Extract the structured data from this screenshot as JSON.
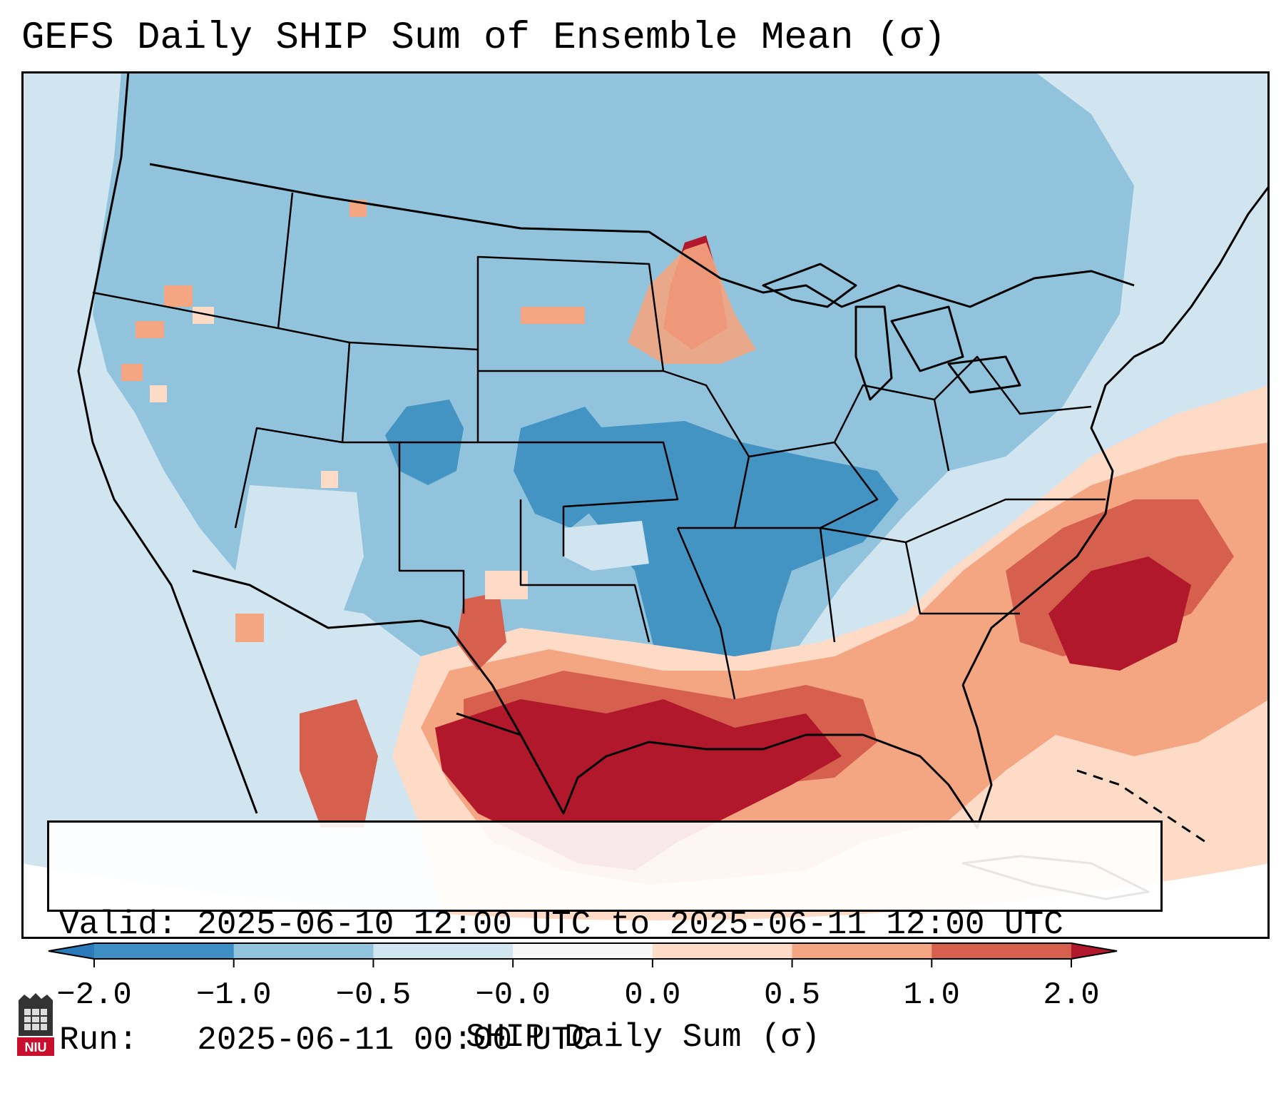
{
  "title": "GEFS Daily SHIP Sum of Ensemble Mean (σ)",
  "info": {
    "valid_label": "Valid:",
    "valid_value": "2025-06-10 12:00 UTC to 2025-06-11 12:00 UTC",
    "run_label": "Run:",
    "run_value": "2025-06-11 00:00 UTC"
  },
  "colorbar": {
    "label": "SHIP Daily Sum (σ)",
    "ticks": [
      "−2.0",
      "−1.0",
      "−0.5",
      "−0.0",
      "0.0",
      "0.5",
      "1.0",
      "2.0"
    ],
    "colors": [
      "#2b7bba",
      "#3d8fc6",
      "#92c3dd",
      "#d1e5f0",
      "#f7f7f7",
      "#fddbc7",
      "#f4a582",
      "#d6604d",
      "#b2182b"
    ],
    "extend": "both"
  },
  "map": {
    "region": "Continental United States, southern Canada, northern Mexico, Gulf of Mexico, western Atlantic",
    "projection": "Lambert Conformal",
    "background_color": "#d1e5f0",
    "outside_domain_color": "#ffffff"
  },
  "logo": {
    "text": "NIU",
    "color": "#c8102e"
  }
}
